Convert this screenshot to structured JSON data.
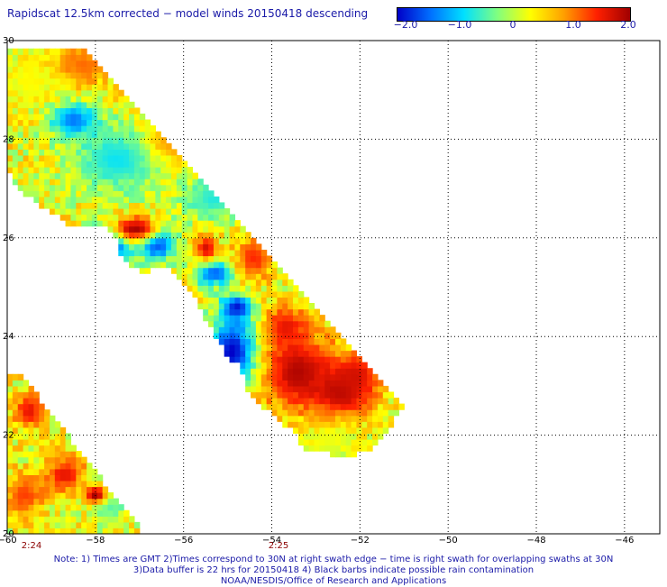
{
  "title": "Rapidscat 12.5km corrected − model winds 20150418 descending",
  "colorbar": {
    "labels": [
      "−2.0",
      "−1.0",
      "0",
      "1.0",
      "2.0"
    ],
    "values": [
      -2.0,
      -1.0,
      0,
      1.0,
      2.0
    ],
    "colors": [
      "#0000c8",
      "#0070ff",
      "#00e0ff",
      "#80ff80",
      "#ffff00",
      "#ffa000",
      "#ff2000",
      "#a00000"
    ]
  },
  "chart_data": {
    "type": "heatmap",
    "xlim": [
      -60,
      -45.2
    ],
    "ylim": [
      20,
      30
    ],
    "x_ticks": [
      -60,
      -58,
      -56,
      -54,
      -52,
      -50,
      -48,
      -46
    ],
    "x_tick_labels": [
      "−60",
      "−58",
      "−56",
      "−54",
      "−52",
      "−50",
      "−48",
      "−46"
    ],
    "y_ticks": [
      20,
      22,
      24,
      26,
      28,
      30
    ],
    "y_tick_labels": [
      "20",
      "22",
      "24",
      "26",
      "28",
      "30"
    ],
    "grid": true,
    "value_range": [
      -2.0,
      2.0
    ],
    "swaths": [
      {
        "time": "2:24",
        "time_lon": -60,
        "polygon": [
          [
            -60,
            23.3
          ],
          [
            -59.75,
            23.3
          ],
          [
            -56.9,
            20.0
          ],
          [
            -60,
            20.0
          ]
        ]
      },
      {
        "time": "2:25",
        "time_lon": -54,
        "polygon": [
          [
            -60,
            29.9
          ],
          [
            -58.3,
            29.9
          ],
          [
            -51.0,
            22.6
          ],
          [
            -51.6,
            21.8
          ],
          [
            -51.8,
            21.7
          ],
          [
            -52.1,
            21.6
          ],
          [
            -52.5,
            21.6
          ],
          [
            -53.3,
            21.7
          ],
          [
            -53.5,
            22.1
          ],
          [
            -53.7,
            22.2
          ],
          [
            -54.1,
            22.5
          ],
          [
            -54.3,
            22.6
          ],
          [
            -54.6,
            23.0
          ],
          [
            -54.7,
            23.4
          ],
          [
            -55.0,
            23.6
          ],
          [
            -55.3,
            24.0
          ],
          [
            -55.7,
            24.7
          ],
          [
            -56.3,
            25.4
          ],
          [
            -57.0,
            25.3
          ],
          [
            -57.4,
            25.6
          ],
          [
            -57.5,
            26.0
          ],
          [
            -57.7,
            26.2
          ],
          [
            -58.5,
            26.2
          ],
          [
            -59.8,
            27.0
          ],
          [
            -60,
            27.5
          ]
        ]
      }
    ],
    "value_fields": [
      {
        "center": [
          -53.4,
          23.3
        ],
        "radius": [
          1.0,
          0.9
        ],
        "value": 1.9
      },
      {
        "center": [
          -52.4,
          22.9
        ],
        "radius": [
          0.8,
          0.6
        ],
        "value": 1.9
      },
      {
        "center": [
          -52.1,
          23.2
        ],
        "radius": [
          0.6,
          0.5
        ],
        "value": 1.7
      },
      {
        "center": [
          -53.7,
          24.2
        ],
        "radius": [
          0.6,
          0.5
        ],
        "value": 1.6
      },
      {
        "center": [
          -54.9,
          23.7
        ],
        "radius": [
          0.6,
          0.8
        ],
        "value": -2.0
      },
      {
        "center": [
          -54.8,
          24.6
        ],
        "radius": [
          0.4,
          0.3
        ],
        "value": -1.9
      },
      {
        "center": [
          -57.7,
          25.9
        ],
        "radius": [
          0.6,
          0.4
        ],
        "value": -2.0
      },
      {
        "center": [
          -56.6,
          25.9
        ],
        "radius": [
          0.5,
          0.4
        ],
        "value": -1.8
      },
      {
        "center": [
          -55.3,
          25.3
        ],
        "radius": [
          0.5,
          0.3
        ],
        "value": -1.6
      },
      {
        "center": [
          -57.1,
          26.2
        ],
        "radius": [
          0.6,
          0.3
        ],
        "value": 2.0
      },
      {
        "center": [
          -55.5,
          25.8
        ],
        "radius": [
          0.3,
          0.3
        ],
        "value": 1.7
      },
      {
        "center": [
          -54.4,
          25.6
        ],
        "radius": [
          0.5,
          0.5
        ],
        "value": 1.4
      },
      {
        "center": [
          -57.5,
          27.6
        ],
        "radius": [
          1.2,
          0.8
        ],
        "value": -0.8
      },
      {
        "center": [
          -58.5,
          28.4
        ],
        "radius": [
          0.6,
          0.4
        ],
        "value": -1.4
      },
      {
        "center": [
          -55.3,
          26.8
        ],
        "radius": [
          0.9,
          0.5
        ],
        "value": -0.7
      },
      {
        "center": [
          -56.3,
          28.0
        ],
        "radius": [
          0.6,
          0.5
        ],
        "value": 0.9
      },
      {
        "center": [
          -58.3,
          29.5
        ],
        "radius": [
          0.8,
          0.5
        ],
        "value": 1.1
      },
      {
        "center": [
          -59.5,
          29.2
        ],
        "radius": [
          0.6,
          0.6
        ],
        "value": 0.3
      },
      {
        "center": [
          -52.7,
          21.9
        ],
        "radius": [
          0.8,
          0.4
        ],
        "value": 0.2
      },
      {
        "center": [
          -59.5,
          22.5
        ],
        "radius": [
          0.4,
          0.4
        ],
        "value": 1.6
      },
      {
        "center": [
          -58.7,
          21.2
        ],
        "radius": [
          0.5,
          0.4
        ],
        "value": 1.6
      },
      {
        "center": [
          -59.6,
          20.8
        ],
        "radius": [
          0.5,
          0.5
        ],
        "value": 1.3
      },
      {
        "center": [
          -57.7,
          20.6
        ],
        "radius": [
          0.5,
          0.4
        ],
        "value": -0.5
      },
      {
        "center": [
          -58.0,
          20.8
        ],
        "radius": [
          0.3,
          0.2
        ],
        "value": 2.0
      }
    ]
  },
  "times": [
    "2:24",
    "2:25"
  ],
  "notes": [
    "Note: 1) Times are GMT 2)Times correspond to 30N at right swath edge − time is right swath for overlapping swaths at 30N",
    "3)Data buffer is 22 hrs for 20150418 4) Black barbs indicate possible rain contamination",
    "NOAA/NESDIS/Office of Research and Applications"
  ]
}
